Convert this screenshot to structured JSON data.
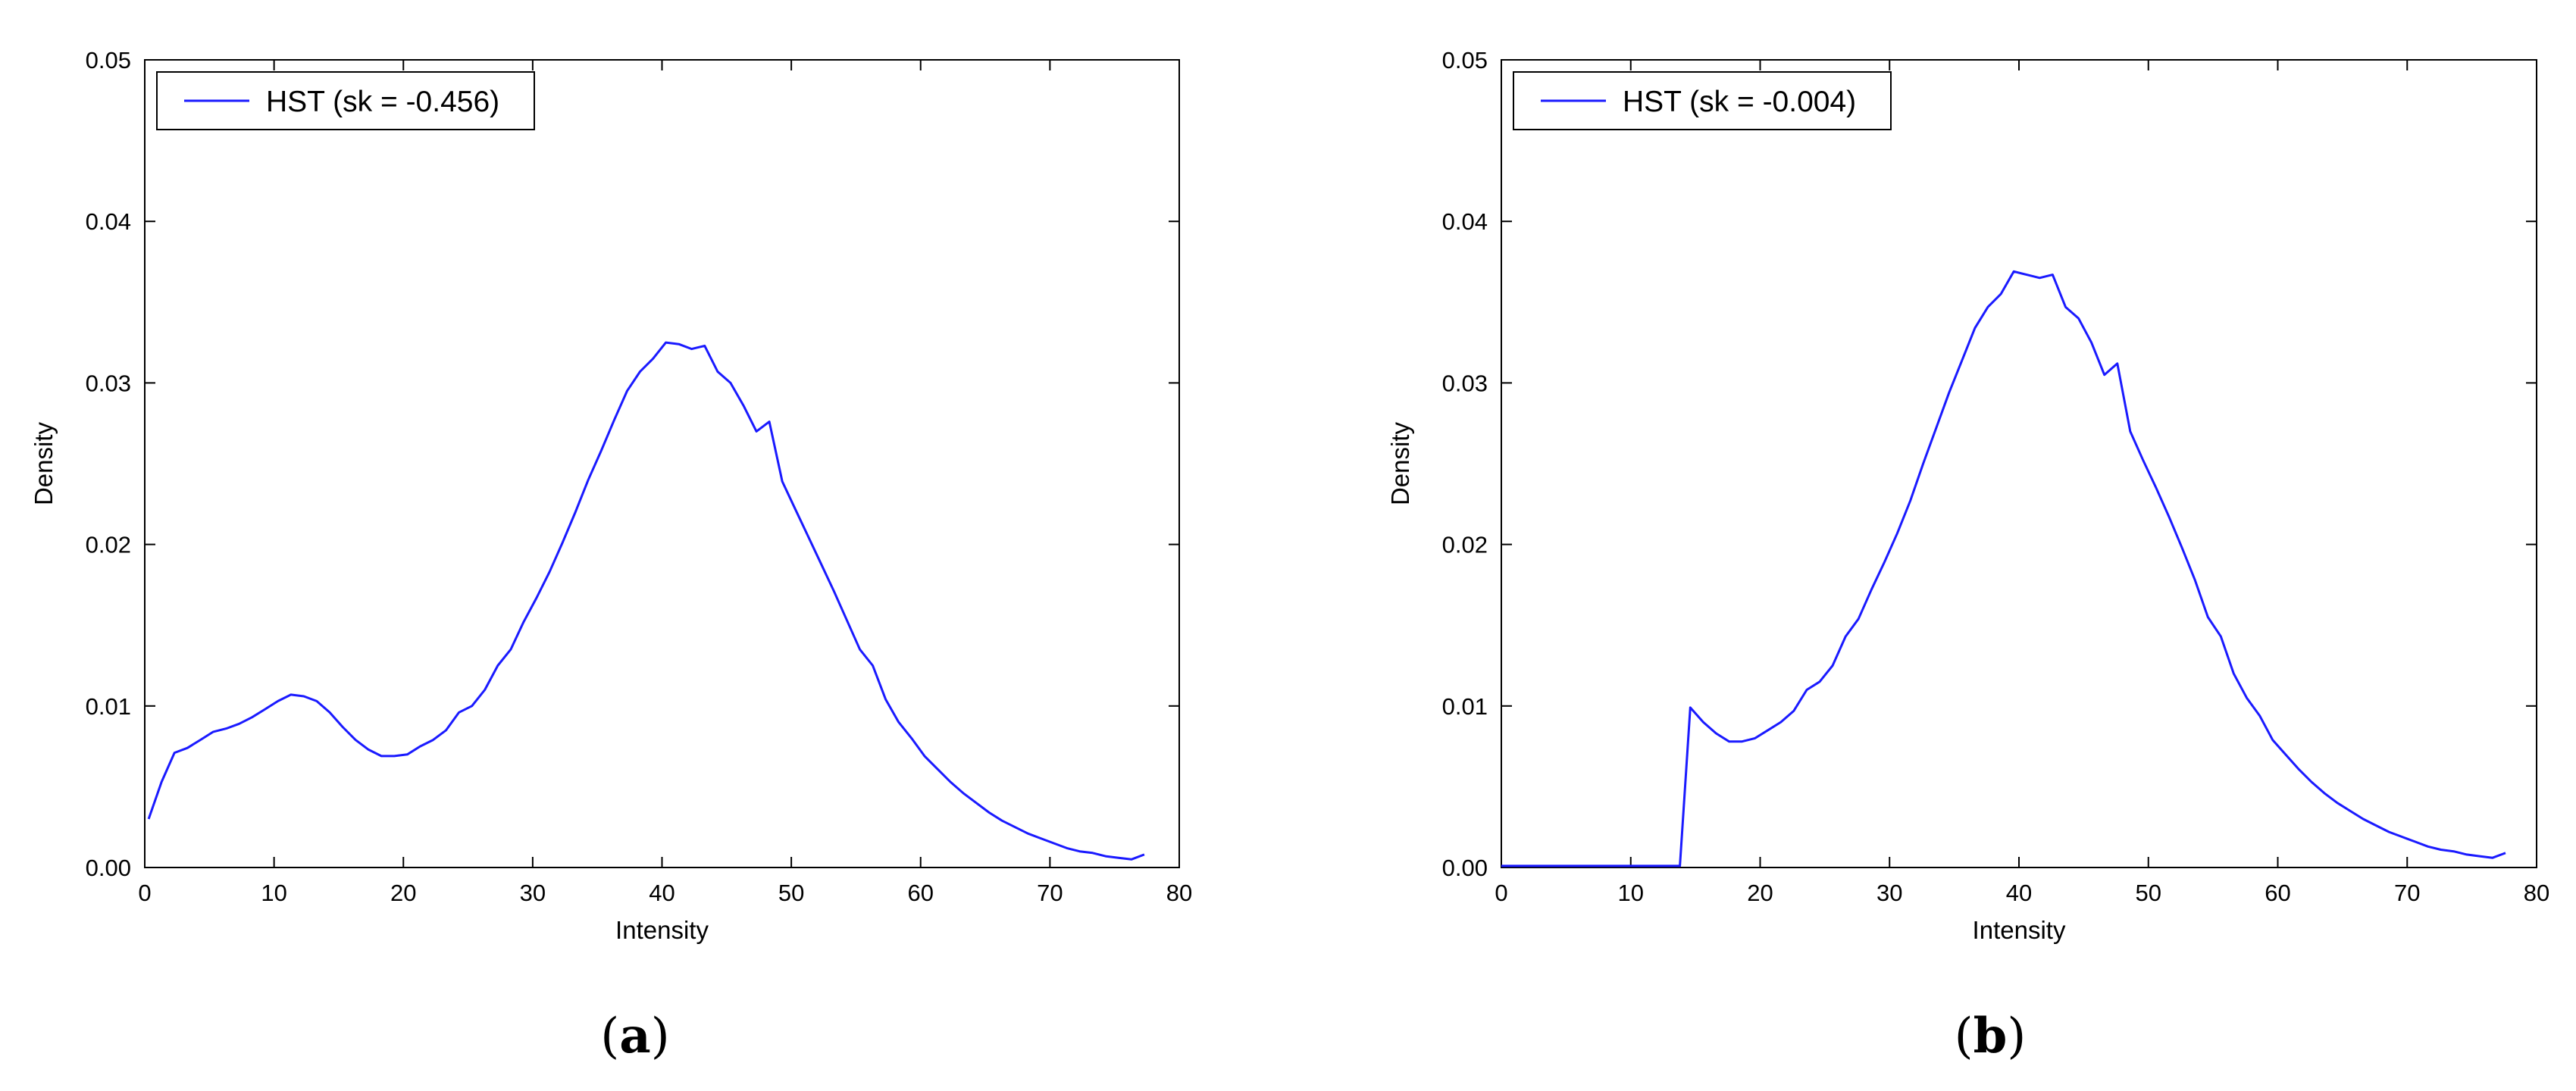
{
  "chart_data": [
    {
      "type": "line",
      "xlabel": "Intensity",
      "ylabel": "Density",
      "xlim": [
        0,
        80
      ],
      "ylim": [
        0,
        0.05
      ],
      "xticks": [
        "0",
        "10",
        "20",
        "30",
        "40",
        "50",
        "60",
        "70",
        "80"
      ],
      "yticks": [
        "0.00",
        "0.01",
        "0.02",
        "0.03",
        "0.04",
        "0.05"
      ],
      "grid": false,
      "legend_position": "top-left",
      "caption": "(a)",
      "series": [
        {
          "name": "HST (sk = -0.456)",
          "color": "#1a1aff",
          "x": [
            0.3,
            1.3,
            2.3,
            3.3,
            4.3,
            5.3,
            6.3,
            7.3,
            8.3,
            9.3,
            10.3,
            11.3,
            12.3,
            13.3,
            14.3,
            15.3,
            16.3,
            17.3,
            18.3,
            19.3,
            20.3,
            21.3,
            22.3,
            23.3,
            24.3,
            25.3,
            26.3,
            27.3,
            28.3,
            29.3,
            30.3,
            31.3,
            32.3,
            33.3,
            34.3,
            35.3,
            36.3,
            37.3,
            38.3,
            39.3,
            40.3,
            41.3,
            42.3,
            43.3,
            44.3,
            45.3,
            46.3,
            47.3,
            48.3,
            49.3,
            50.3,
            51.3,
            52.3,
            53.3,
            54.3,
            55.3,
            56.3,
            57.3,
            58.3,
            59.3,
            60.3,
            61.3,
            62.3,
            63.3,
            64.3,
            65.3,
            66.3,
            67.3,
            68.3,
            69.3,
            70.3,
            71.3,
            72.3,
            73.3,
            74.3,
            75.3,
            76.3,
            77.3
          ],
          "y": [
            0.003,
            0.0053,
            0.0071,
            0.0074,
            0.0079,
            0.0084,
            0.0086,
            0.0089,
            0.0093,
            0.0098,
            0.0103,
            0.0107,
            0.0106,
            0.0103,
            0.0096,
            0.0087,
            0.0079,
            0.0073,
            0.0069,
            0.0069,
            0.007,
            0.0075,
            0.0079,
            0.0085,
            0.0096,
            0.01,
            0.011,
            0.0125,
            0.0135,
            0.0152,
            0.0167,
            0.0183,
            0.0201,
            0.022,
            0.024,
            0.0258,
            0.0277,
            0.0295,
            0.0307,
            0.0315,
            0.0325,
            0.0324,
            0.0321,
            0.0323,
            0.0307,
            0.03,
            0.0286,
            0.027,
            0.0276,
            0.0239,
            0.0222,
            0.0205,
            0.0188,
            0.0171,
            0.0153,
            0.0135,
            0.0125,
            0.0104,
            0.009,
            0.008,
            0.0069,
            0.0061,
            0.0053,
            0.0046,
            0.004,
            0.0034,
            0.0029,
            0.0025,
            0.0021,
            0.0018,
            0.0015,
            0.0012,
            0.001,
            0.0009,
            0.0007,
            0.0006,
            0.0005,
            0.0008
          ]
        }
      ]
    },
    {
      "type": "line",
      "xlabel": "Intensity",
      "ylabel": "Density",
      "xlim": [
        0,
        80
      ],
      "ylim": [
        0,
        0.05
      ],
      "xticks": [
        "0",
        "10",
        "20",
        "30",
        "40",
        "50",
        "60",
        "70",
        "80"
      ],
      "yticks": [
        "0.00",
        "0.01",
        "0.02",
        "0.03",
        "0.04",
        "0.05"
      ],
      "grid": false,
      "legend_position": "top-left",
      "caption": "(b)",
      "series": [
        {
          "name": "HST (sk = -0.004)",
          "color": "#1a1aff",
          "x": [
            0,
            2,
            4,
            6,
            8,
            10,
            12,
            13.8,
            14.6,
            15.6,
            16.6,
            17.6,
            18.6,
            19.6,
            20.6,
            21.6,
            22.6,
            23.6,
            24.6,
            25.6,
            26.6,
            27.6,
            28.6,
            29.6,
            30.6,
            31.6,
            32.6,
            33.6,
            34.6,
            35.6,
            36.6,
            37.6,
            38.6,
            39.6,
            40.6,
            41.6,
            42.6,
            43.6,
            44.6,
            45.6,
            46.6,
            47.6,
            48.6,
            49.6,
            50.6,
            51.6,
            52.6,
            53.6,
            54.6,
            55.6,
            56.6,
            57.6,
            58.6,
            59.6,
            60.6,
            61.6,
            62.6,
            63.6,
            64.6,
            65.6,
            66.6,
            67.6,
            68.6,
            69.6,
            70.6,
            71.6,
            72.6,
            73.6,
            74.6,
            75.6,
            76.6,
            77.6
          ],
          "y": [
            0.0001,
            0.0001,
            0.0001,
            0.0001,
            0.0001,
            0.0001,
            0.0001,
            0.0001,
            0.0099,
            0.009,
            0.0083,
            0.0078,
            0.0078,
            0.008,
            0.0085,
            0.009,
            0.0097,
            0.011,
            0.0115,
            0.0125,
            0.0143,
            0.0154,
            0.0172,
            0.0189,
            0.0207,
            0.0227,
            0.025,
            0.0272,
            0.0294,
            0.0314,
            0.0334,
            0.0347,
            0.0355,
            0.0369,
            0.0367,
            0.0365,
            0.0367,
            0.0347,
            0.034,
            0.0325,
            0.0305,
            0.0312,
            0.027,
            0.0252,
            0.0235,
            0.0217,
            0.0198,
            0.0178,
            0.0155,
            0.0143,
            0.012,
            0.0105,
            0.0094,
            0.0079,
            0.007,
            0.0061,
            0.0053,
            0.0046,
            0.004,
            0.0035,
            0.003,
            0.0026,
            0.0022,
            0.0019,
            0.0016,
            0.0013,
            0.0011,
            0.001,
            0.0008,
            0.0007,
            0.0006,
            0.0009
          ]
        }
      ]
    }
  ]
}
